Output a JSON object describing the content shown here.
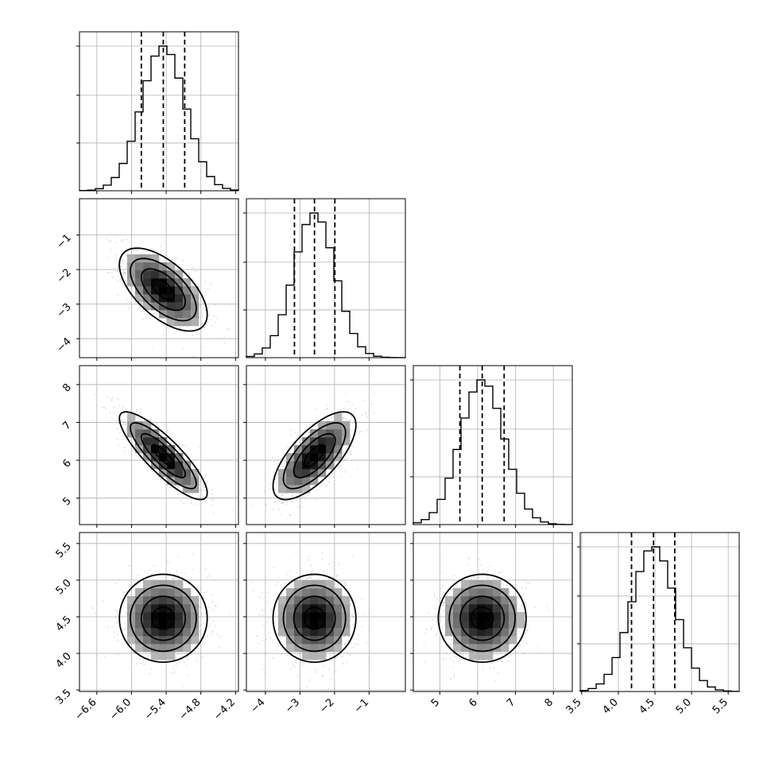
{
  "chart_data": {
    "type": "corner",
    "grid": true,
    "parameters": [
      {
        "index": 0,
        "range": [
          -6.9,
          -4.15
        ],
        "ticks": [
          -6.6,
          -6.0,
          -5.4,
          -4.8,
          -4.2
        ],
        "tick_labels": [
          "−6.6",
          "−6.0",
          "−5.4",
          "−4.8",
          "−4.2"
        ],
        "mean": -5.45,
        "sigma": 0.38,
        "quantiles": [
          -5.83,
          -5.45,
          -5.08
        ]
      },
      {
        "index": 1,
        "range": [
          -4.55,
          0.05
        ],
        "ticks": [
          -4,
          -3,
          -2,
          -1
        ],
        "tick_labels": [
          "−4",
          "−3",
          "−2",
          "−1"
        ],
        "mean": -2.58,
        "sigma": 0.6,
        "quantiles": [
          -3.16,
          -2.58,
          -1.99
        ]
      },
      {
        "index": 2,
        "range": [
          4.3,
          8.5
        ],
        "ticks": [
          5,
          6,
          7,
          8
        ],
        "tick_labels": [
          "5",
          "6",
          "7",
          "8"
        ],
        "mean": 6.12,
        "sigma": 0.58,
        "quantiles": [
          5.53,
          6.12,
          6.7
        ]
      },
      {
        "index": 3,
        "range": [
          3.48,
          5.65
        ],
        "ticks": [
          3.5,
          4.0,
          4.5,
          5.0,
          5.5
        ],
        "tick_labels": [
          "3.5",
          "4.0",
          "4.5",
          "5.0",
          "5.5"
        ],
        "mean": 4.48,
        "sigma": 0.3,
        "quantiles": [
          4.18,
          4.48,
          4.77
        ]
      }
    ],
    "correlations": [
      [
        1.0,
        -0.6,
        -0.85,
        0.0
      ],
      [
        -0.6,
        1.0,
        0.7,
        0.0
      ],
      [
        -0.85,
        0.7,
        1.0,
        0.0
      ],
      [
        0.0,
        0.0,
        0.0,
        1.0
      ]
    ],
    "histogram_bins": 20,
    "contour_levels_sigma": [
      0.5,
      1.0,
      1.5,
      2.0
    ]
  }
}
